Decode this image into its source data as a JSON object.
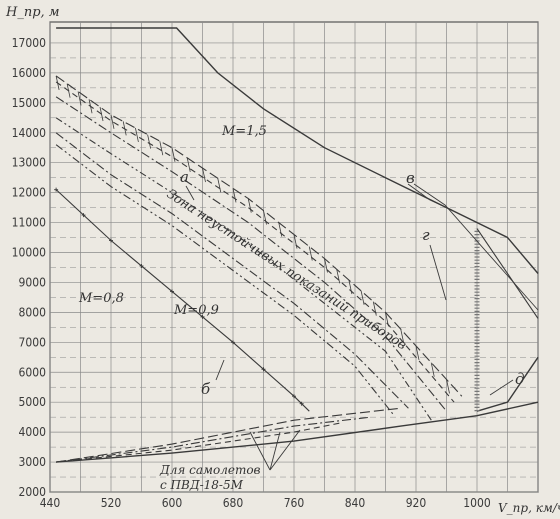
{
  "chart_data": {
    "type": "line",
    "xlabel": "V_пр, км/ч",
    "ylabel": "H_пр, м",
    "x_ticks": [
      440,
      520,
      600,
      680,
      760,
      840,
      920,
      1000
    ],
    "y_ticks": [
      2000,
      3000,
      4000,
      5000,
      6000,
      7000,
      8000,
      9000,
      10000,
      11000,
      12000,
      13000,
      14000,
      15000,
      16000,
      17000
    ],
    "xlim": [
      440,
      1080
    ],
    "ylim": [
      2000,
      17700
    ],
    "grid": true,
    "labels": {
      "m15": "M=1,5",
      "m09": "M=0,9",
      "m08": "M=0,8",
      "a": "а",
      "b": "б",
      "v": "в",
      "g": "г",
      "d": "д",
      "zone": "Зона неустойчивых показаний приборов",
      "note_line1": "Для самолетов",
      "note_line2": "с ПВД-18-5М"
    },
    "series": [
      {
        "key": "m15",
        "style": "solid",
        "points": [
          [
            448,
            17500
          ],
          [
            606,
            17500
          ],
          [
            660,
            16000
          ],
          [
            720,
            14800
          ],
          [
            800,
            13500
          ],
          [
            880,
            12500
          ],
          [
            960,
            11500
          ],
          [
            1040,
            10500
          ],
          [
            1080,
            9300
          ]
        ]
      },
      {
        "key": "bottom",
        "style": "solid",
        "points": [
          [
            448,
            3000
          ],
          [
            600,
            3300
          ],
          [
            760,
            3700
          ],
          [
            900,
            4200
          ],
          [
            1000,
            4550
          ],
          [
            1080,
            5000
          ]
        ]
      },
      {
        "key": "d",
        "style": "solid",
        "points": [
          [
            1000,
            4700
          ],
          [
            1040,
            5000
          ],
          [
            1080,
            6500
          ]
        ]
      },
      {
        "key": "g",
        "style": "hatch",
        "points": [
          [
            1000,
            4700
          ],
          [
            1000,
            10800
          ]
        ]
      },
      {
        "key": "v1",
        "style": "solid-thin",
        "points": [
          [
            1000,
            10800
          ],
          [
            1080,
            7800
          ]
        ]
      },
      {
        "key": "zone_top",
        "style": "longdash",
        "points": [
          [
            448,
            15900
          ],
          [
            520,
            14600
          ],
          [
            600,
            13500
          ],
          [
            700,
            11800
          ],
          [
            800,
            9800
          ],
          [
            880,
            8000
          ],
          [
            980,
            5200
          ]
        ]
      },
      {
        "key": "zone_top2",
        "style": "dash",
        "points": [
          [
            448,
            15700
          ],
          [
            520,
            14400
          ],
          [
            600,
            13200
          ],
          [
            700,
            11500
          ],
          [
            800,
            9500
          ],
          [
            880,
            7700
          ],
          [
            970,
            5000
          ]
        ]
      },
      {
        "key": "zone_bottom",
        "style": "dashdot",
        "points": [
          [
            448,
            15200
          ],
          [
            520,
            14000
          ],
          [
            600,
            12700
          ],
          [
            700,
            11000
          ],
          [
            800,
            9000
          ],
          [
            880,
            7200
          ],
          [
            960,
            4700
          ]
        ]
      },
      {
        "key": "zone_mid",
        "style": "dashdot2",
        "points": [
          [
            448,
            14500
          ],
          [
            520,
            13300
          ],
          [
            600,
            12000
          ],
          [
            700,
            10300
          ],
          [
            800,
            8300
          ],
          [
            880,
            6700
          ],
          [
            940,
            4400
          ]
        ]
      },
      {
        "key": "m09_line",
        "style": "dashdot",
        "points": [
          [
            448,
            14000
          ],
          [
            520,
            12600
          ],
          [
            600,
            11300
          ],
          [
            680,
            9800
          ],
          [
            760,
            8300
          ],
          [
            840,
            6600
          ],
          [
            910,
            4800
          ]
        ]
      },
      {
        "key": "m09_line2",
        "style": "dashdotdot",
        "points": [
          [
            448,
            13600
          ],
          [
            520,
            12200
          ],
          [
            600,
            10900
          ],
          [
            680,
            9400
          ],
          [
            760,
            7900
          ],
          [
            840,
            6200
          ],
          [
            890,
            4600
          ]
        ]
      },
      {
        "key": "m08_line",
        "style": "crosses",
        "points": [
          [
            448,
            12100
          ],
          [
            520,
            10400
          ],
          [
            600,
            8700
          ],
          [
            680,
            7000
          ],
          [
            760,
            5200
          ],
          [
            780,
            4700
          ]
        ]
      },
      {
        "key": "low1",
        "style": "dash",
        "points": [
          [
            448,
            3000
          ],
          [
            600,
            3400
          ],
          [
            760,
            4000
          ],
          [
            820,
            4300
          ]
        ]
      },
      {
        "key": "low2",
        "style": "dashdot",
        "points": [
          [
            448,
            3000
          ],
          [
            600,
            3500
          ],
          [
            760,
            4200
          ],
          [
            860,
            4500
          ]
        ]
      },
      {
        "key": "low3",
        "style": "longdash",
        "points": [
          [
            448,
            3000
          ],
          [
            600,
            3600
          ],
          [
            760,
            4400
          ],
          [
            900,
            4800
          ]
        ]
      }
    ]
  }
}
